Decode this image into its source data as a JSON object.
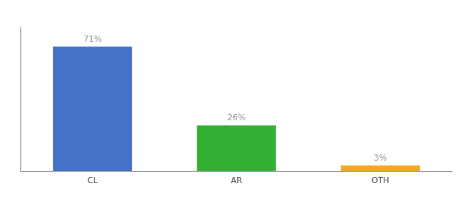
{
  "chart_data": {
    "type": "bar",
    "categories": [
      "CL",
      "AR",
      "OTH"
    ],
    "values": [
      71,
      26,
      3
    ],
    "value_labels": [
      "71%",
      "26%",
      "3%"
    ],
    "data_labels": true,
    "colors": [
      "#4472c4",
      "#33b033",
      "#f4a81d"
    ],
    "ylim": [
      0,
      82
    ],
    "grid": false,
    "tick_labels": "x"
  }
}
